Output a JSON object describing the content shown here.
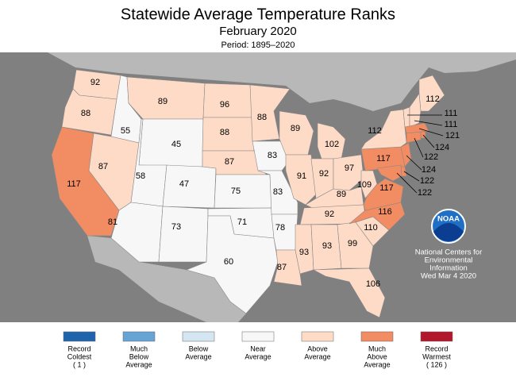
{
  "header": {
    "title": "Statewide Average Temperature Ranks",
    "subtitle": "February 2020",
    "period": "Period: 1895–2020"
  },
  "credit": {
    "logo": "NOAA",
    "lines": [
      "National Centers for",
      "Environmental",
      "Information",
      "Wed Mar  4 2020"
    ]
  },
  "legend": [
    {
      "label": [
        "Record",
        "Coldest",
        "( 1 )"
      ],
      "color": "#1f63ad"
    },
    {
      "label": [
        "Much",
        "Below",
        "Average"
      ],
      "color": "#67a3d3"
    },
    {
      "label": [
        "Below",
        "Average"
      ],
      "color": "#d3e6f2"
    },
    {
      "label": [
        "Near",
        "Average"
      ],
      "color": "#f7f7f7"
    },
    {
      "label": [
        "Above",
        "Average"
      ],
      "color": "#fddbc7"
    },
    {
      "label": [
        "Much",
        "Above",
        "Average"
      ],
      "color": "#f28c62"
    },
    {
      "label": [
        "Record",
        "Warmest",
        "( 126 )"
      ],
      "color": "#b2182b"
    }
  ],
  "states": [
    {
      "rank": 92,
      "color": "#fddbc7"
    },
    {
      "rank": 88,
      "color": "#fddbc7"
    },
    {
      "rank": 117,
      "color": "#f28c62"
    },
    {
      "rank": 55,
      "color": "#f7f7f7"
    },
    {
      "rank": 87,
      "color": "#fddbc7"
    },
    {
      "rank": 89,
      "color": "#fddbc7"
    },
    {
      "rank": 45,
      "color": "#f7f7f7"
    },
    {
      "rank": 58,
      "color": "#f7f7f7"
    },
    {
      "rank": 47,
      "color": "#f7f7f7"
    },
    {
      "rank": 81,
      "color": "#f7f7f7"
    },
    {
      "rank": 73,
      "color": "#f7f7f7"
    },
    {
      "rank": 96,
      "color": "#fddbc7"
    },
    {
      "rank": 88,
      "color": "#fddbc7"
    },
    {
      "rank": 87,
      "color": "#fddbc7"
    },
    {
      "rank": 75,
      "color": "#f7f7f7"
    },
    {
      "rank": 71,
      "color": "#f7f7f7"
    },
    {
      "rank": 60,
      "color": "#f7f7f7"
    },
    {
      "rank": 88,
      "color": "#fddbc7"
    },
    {
      "rank": 83,
      "color": "#f7f7f7"
    },
    {
      "rank": 83,
      "color": "#f7f7f7"
    },
    {
      "rank": 78,
      "color": "#f7f7f7"
    },
    {
      "rank": 87,
      "color": "#fddbc7"
    },
    {
      "rank": 89,
      "color": "#fddbc7"
    },
    {
      "rank": 91,
      "color": "#fddbc7"
    },
    {
      "rank": 102,
      "color": "#fddbc7"
    },
    {
      "rank": 92,
      "color": "#fddbc7"
    },
    {
      "rank": 97,
      "color": "#fddbc7"
    },
    {
      "rank": 89,
      "color": "#fddbc7"
    },
    {
      "rank": 92,
      "color": "#fddbc7"
    },
    {
      "rank": 93,
      "color": "#fddbc7"
    },
    {
      "rank": 93,
      "color": "#fddbc7"
    },
    {
      "rank": 99,
      "color": "#fddbc7"
    },
    {
      "rank": 106,
      "color": "#fddbc7"
    },
    {
      "rank": 110,
      "color": "#fddbc7"
    },
    {
      "rank": 116,
      "color": "#f28c62"
    },
    {
      "rank": 117,
      "color": "#f28c62"
    },
    {
      "rank": 109,
      "color": "#fddbc7"
    },
    {
      "rank": 117,
      "color": "#f28c62"
    },
    {
      "rank": 112,
      "color": "#fddbc7"
    },
    {
      "rank": 112,
      "color": "#fddbc7"
    },
    {
      "rank": 111,
      "color": "#fddbc7"
    },
    {
      "rank": 111,
      "color": "#fddbc7"
    },
    {
      "rank": 121,
      "color": "#f28c62"
    },
    {
      "rank": 124,
      "color": "#f28c62"
    },
    {
      "rank": 122,
      "color": "#f28c62"
    },
    {
      "rank": 124,
      "color": "#f28c62"
    },
    {
      "rank": 122,
      "color": "#f28c62"
    },
    {
      "rank": 122,
      "color": "#f28c62"
    }
  ]
}
